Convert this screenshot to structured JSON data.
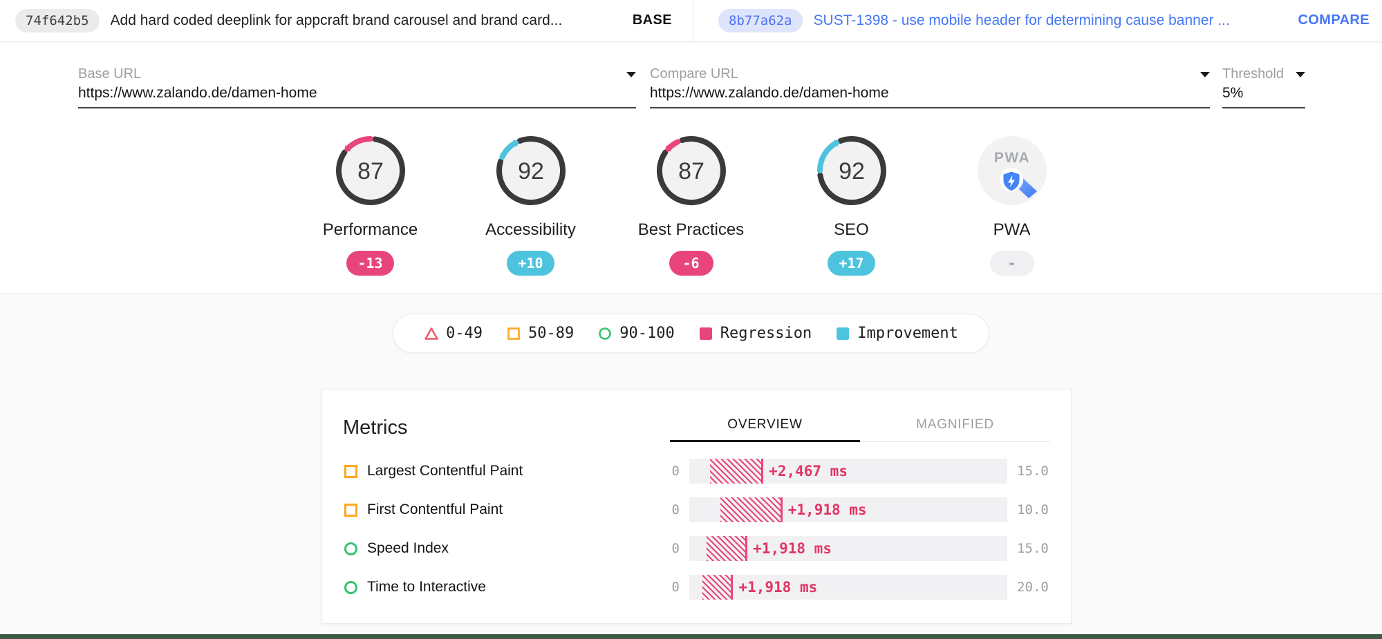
{
  "header": {
    "base": {
      "hash": "74f642b5",
      "title": "Add hard coded deeplink for appcraft brand carousel and brand card...",
      "role": "BASE"
    },
    "compare": {
      "hash": "8b77a62a",
      "title": "SUST-1398 - use mobile header for determining cause banner ...",
      "role": "COMPARE"
    }
  },
  "form": {
    "base_url": {
      "label": "Base URL",
      "value": "https://www.zalando.de/damen-home"
    },
    "compare_url": {
      "label": "Compare URL",
      "value": "https://www.zalando.de/damen-home"
    },
    "threshold": {
      "label": "Threshold",
      "value": "5%"
    }
  },
  "gauges": [
    {
      "id": "performance",
      "label": "Performance",
      "score": 87,
      "delta": "-13",
      "delta_value": -13,
      "direction": "regression"
    },
    {
      "id": "accessibility",
      "label": "Accessibility",
      "score": 92,
      "delta": "+10",
      "delta_value": 10,
      "direction": "improvement"
    },
    {
      "id": "best-practices",
      "label": "Best Practices",
      "score": 87,
      "delta": "-6",
      "delta_value": -6,
      "direction": "regression"
    },
    {
      "id": "seo",
      "label": "SEO",
      "score": 92,
      "delta": "+17",
      "delta_value": 17,
      "direction": "improvement"
    },
    {
      "id": "pwa",
      "label": "PWA",
      "type": "pwa",
      "logo_text": "PWA",
      "delta": "-",
      "direction": "neutral"
    }
  ],
  "legend": [
    {
      "shape": "triangle-outline",
      "color": "#ee5368",
      "label": "0-49"
    },
    {
      "shape": "square-outline",
      "color": "#ffa622",
      "label": "50-89"
    },
    {
      "shape": "circle-outline",
      "color": "#31c46f",
      "label": "90-100"
    },
    {
      "shape": "square-filled",
      "color": "#e8457c",
      "label": "Regression"
    },
    {
      "shape": "square-filled",
      "color": "#4ec3dd",
      "label": "Improvement"
    }
  ],
  "metrics": {
    "title": "Metrics",
    "tabs": [
      {
        "label": "OVERVIEW",
        "active": true
      },
      {
        "label": "MAGNIFIED",
        "active": false
      }
    ],
    "rows": [
      {
        "label": "Largest Contentful Paint",
        "icon": "square",
        "icon_color": "#ffa622",
        "axis_min": "0",
        "axis_max": "15.0",
        "delta_label": "+2,467 ms",
        "bar_start_pct": 6.5,
        "bar_width_pct": 16.8
      },
      {
        "label": "First Contentful Paint",
        "icon": "square",
        "icon_color": "#ffa622",
        "axis_min": "0",
        "axis_max": "10.0",
        "delta_label": "+1,918 ms",
        "bar_start_pct": 9.8,
        "bar_width_pct": 19.5
      },
      {
        "label": "Speed Index",
        "icon": "circle",
        "icon_color": "#31c46f",
        "axis_min": "0",
        "axis_max": "15.0",
        "delta_label": "+1,918 ms",
        "bar_start_pct": 5.5,
        "bar_width_pct": 12.8
      },
      {
        "label": "Time to Interactive",
        "icon": "circle",
        "icon_color": "#31c46f",
        "axis_min": "0",
        "axis_max": "20.0",
        "delta_label": "+1,918 ms",
        "bar_start_pct": 4.2,
        "bar_width_pct": 9.6
      }
    ]
  },
  "colors": {
    "regression": "#e8457c",
    "regression_text": "#e23563",
    "improvement": "#4ec3dd",
    "score_fail": "#ee5368",
    "score_average": "#ffa622",
    "score_pass": "#31c46f",
    "link_blue": "#4577f6",
    "compare_pill_bg": "#dde4fb",
    "compare_pill_text": "#5173f2",
    "gauge_ring": "#3a3a3a",
    "gauge_inner": "#f2f2f3",
    "pwa_blue": "#4285f4",
    "bottom_strip": "#3d5a44"
  }
}
